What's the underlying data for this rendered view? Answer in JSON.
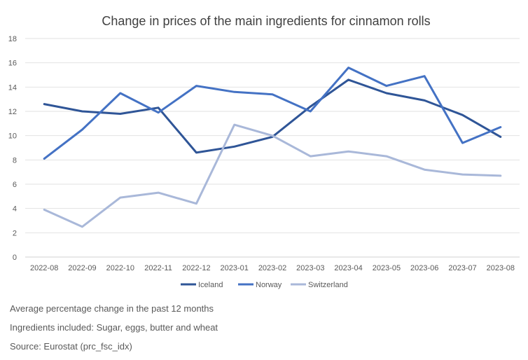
{
  "chart_data": {
    "type": "line",
    "title": "Change in prices of the main ingredients for cinnamon rolls",
    "categories": [
      "2022-08",
      "2022-09",
      "2022-10",
      "2022-11",
      "2022-12",
      "2023-01",
      "2023-02",
      "2023-03",
      "2023-04",
      "2023-05",
      "2023-06",
      "2023-07",
      "2023-08"
    ],
    "ylim": [
      0,
      18
    ],
    "yticks": [
      "0",
      "2",
      "4",
      "6",
      "8",
      "10",
      "12",
      "14",
      "16",
      "18"
    ],
    "grid": true,
    "legend_position": "bottom",
    "series": [
      {
        "name": "Iceland",
        "color": "#2F5597",
        "values": [
          12.6,
          12.0,
          11.8,
          12.3,
          8.6,
          9.1,
          9.9,
          12.4,
          14.6,
          13.5,
          12.9,
          11.7,
          9.9
        ]
      },
      {
        "name": "Norway",
        "color": "#4472C4",
        "values": [
          8.1,
          10.5,
          13.5,
          11.9,
          14.1,
          13.6,
          13.4,
          12.0,
          15.6,
          14.1,
          14.9,
          9.4,
          10.7
        ]
      },
      {
        "name": "Switzerland",
        "color": "#A9B8D9",
        "values": [
          3.9,
          2.5,
          4.9,
          5.3,
          4.4,
          10.9,
          10.0,
          8.3,
          8.7,
          8.3,
          7.2,
          6.8,
          6.7
        ]
      }
    ]
  },
  "notes": [
    "Average percentage change in the past 12 months",
    "Ingredients included: Sugar, eggs, butter and wheat",
    "Source: Eurostat (prc_fsc_idx)"
  ]
}
